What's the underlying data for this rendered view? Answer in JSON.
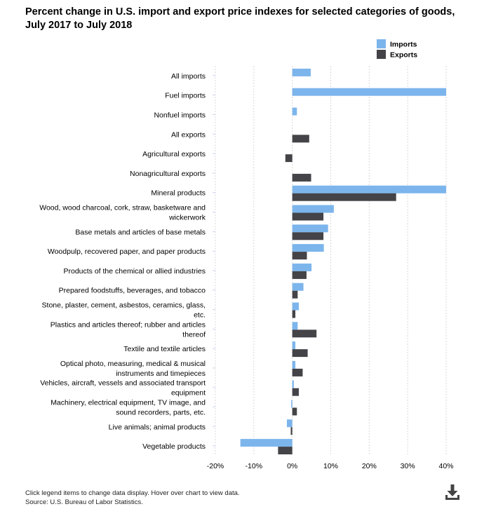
{
  "title": "Percent change in U.S. import and export price indexes for selected categories of goods, July 2017 to July 2018",
  "footer": {
    "note": "Click legend items to change data display. Hover over chart to view data.",
    "source": "Source: U.S. Bureau of Labor Statistics."
  },
  "colors": {
    "imports": "#7cb5ec",
    "exports": "#434348",
    "grid": "#d8d8d8"
  },
  "icons": {
    "download": "download-icon"
  },
  "chart_data": {
    "type": "bar",
    "orientation": "horizontal",
    "categories": [
      [
        "All imports"
      ],
      [
        "Fuel imports"
      ],
      [
        "Nonfuel imports"
      ],
      [
        "All exports"
      ],
      [
        "Agricultural exports"
      ],
      [
        "Nonagricultural exports"
      ],
      [
        "Mineral products"
      ],
      [
        "Wood, wood charcoal, cork, straw, basketware and",
        "wickerwork"
      ],
      [
        "Base metals and articles of base metals"
      ],
      [
        "Woodpulp, recovered paper, and paper products"
      ],
      [
        "Products of the chemical or allied industries"
      ],
      [
        "Prepared foodstuffs, beverages, and tobacco"
      ],
      [
        "Stone, plaster, cement, asbestos, ceramics, glass,",
        "etc."
      ],
      [
        "Plastics and articles thereof; rubber and articles",
        "thereof"
      ],
      [
        "Textile and textile articles"
      ],
      [
        "Optical photo, measuring, medical & musical",
        "instruments and timepieces"
      ],
      [
        "Vehicles, aircraft, vessels and associated transport",
        "equipment"
      ],
      [
        "Machinery, electrical equipment, TV image, and",
        "sound recorders, parts, etc."
      ],
      [
        "Live animals; animal products"
      ],
      [
        "Vegetable products"
      ]
    ],
    "series": [
      {
        "name": "Imports",
        "values": [
          4.8,
          40.0,
          1.2,
          null,
          null,
          null,
          40.0,
          10.8,
          9.3,
          8.2,
          5.0,
          2.9,
          1.7,
          1.4,
          0.8,
          0.8,
          0.4,
          -0.2,
          -1.4,
          -13.5
        ]
      },
      {
        "name": "Exports",
        "values": [
          null,
          null,
          null,
          4.4,
          -1.8,
          4.9,
          27.0,
          8.1,
          8.1,
          3.8,
          3.7,
          1.4,
          0.8,
          6.3,
          4.0,
          2.7,
          1.7,
          1.2,
          -0.4,
          -3.7
        ]
      }
    ],
    "xlim": [
      -20,
      40
    ],
    "xticks": [
      "-20%",
      "-10%",
      "0%",
      "10%",
      "20%",
      "30%",
      "40%"
    ],
    "xtick_values": [
      -20,
      -10,
      0,
      10,
      20,
      30,
      40
    ],
    "grid": true,
    "legend_position": "top-right"
  }
}
